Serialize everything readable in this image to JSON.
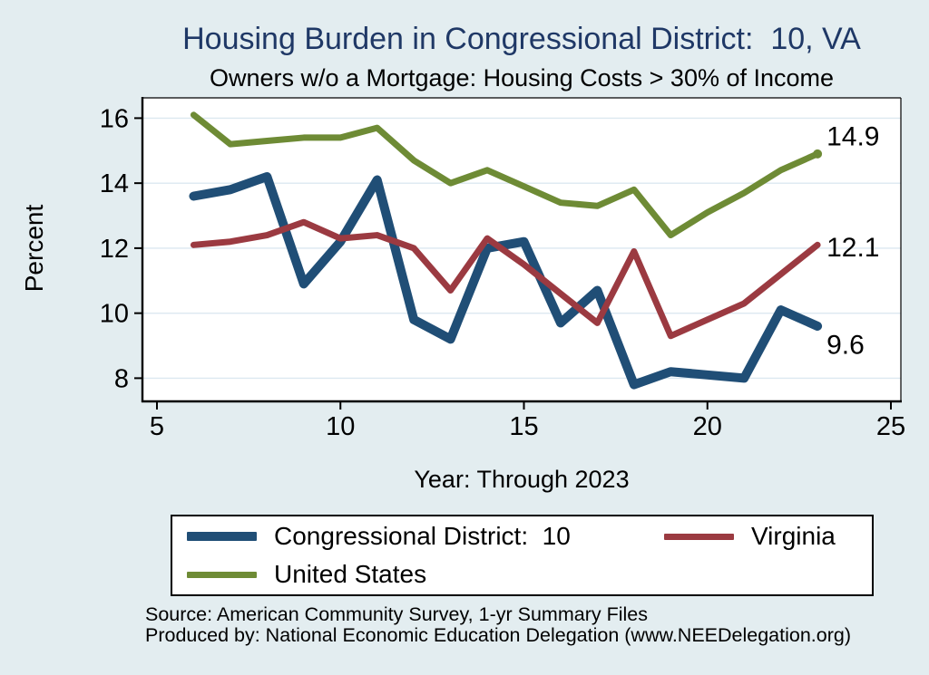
{
  "title": "Housing Burden in Congressional District:  10, VA",
  "subtitle": "Owners w/o a Mortgage: Housing Costs > 30% of Income",
  "y_axis_label": "Percent",
  "x_axis_label": "Year: Through 2023",
  "footer": {
    "line1": "Source: American Community Survey, 1-yr Summary Files",
    "line2": "Produced by: National Economic Education Delegation (www.NEEDelegation.org)"
  },
  "legend": {
    "items": [
      {
        "label": "Congressional District:  10"
      },
      {
        "label": "Virginia"
      },
      {
        "label": "United States"
      }
    ]
  },
  "colors": {
    "background": "#e3edf0",
    "plot_background": "#ffffff",
    "gridline": "#dce8f0",
    "axis": "#000000",
    "title": "#1f3866"
  },
  "chart_data": {
    "type": "line",
    "title": "Housing Burden in Congressional District:  10, VA",
    "subtitle": "Owners w/o a Mortgage: Housing Costs > 30% of Income",
    "xlabel": "Year: Through 2023",
    "ylabel": "Percent",
    "xlim": [
      5,
      25
    ],
    "ylim": [
      7.3,
      16.6
    ],
    "x_ticks": [
      5,
      10,
      15,
      20,
      25
    ],
    "y_ticks": [
      8,
      10,
      12,
      14,
      16
    ],
    "grid": true,
    "legend_position": "bottom",
    "x": [
      6,
      7,
      8,
      9,
      10,
      11,
      12,
      13,
      14,
      15,
      16,
      17,
      18,
      19,
      20,
      21,
      22,
      23
    ],
    "series": [
      {
        "name": "Congressional District:  10",
        "color": "#204e76",
        "line_width": 10,
        "end_label": "9.6",
        "end_label_dy": 21,
        "end_dot": false,
        "values": [
          13.6,
          13.8,
          14.2,
          10.9,
          12.2,
          14.1,
          9.8,
          9.2,
          12.0,
          12.2,
          9.7,
          10.7,
          7.8,
          8.2,
          8.1,
          8.0,
          10.1,
          9.6
        ]
      },
      {
        "name": "Virginia",
        "color": "#9b3a41",
        "line_width": 7,
        "end_label": "12.1",
        "end_label_dy": 3,
        "end_dot": false,
        "values": [
          12.1,
          12.2,
          12.4,
          12.8,
          12.3,
          12.4,
          12.0,
          10.7,
          12.3,
          11.5,
          10.6,
          9.7,
          11.9,
          9.3,
          9.8,
          10.3,
          11.2,
          12.1
        ]
      },
      {
        "name": "United States",
        "color": "#6e8b35",
        "line_width": 7,
        "end_label": "14.9",
        "end_label_dy": -19,
        "end_dot": true,
        "values": [
          16.1,
          15.2,
          15.3,
          15.4,
          15.4,
          15.7,
          14.7,
          14.0,
          14.4,
          13.9,
          13.4,
          13.3,
          13.8,
          12.4,
          13.1,
          13.7,
          14.4,
          14.9
        ]
      }
    ]
  }
}
